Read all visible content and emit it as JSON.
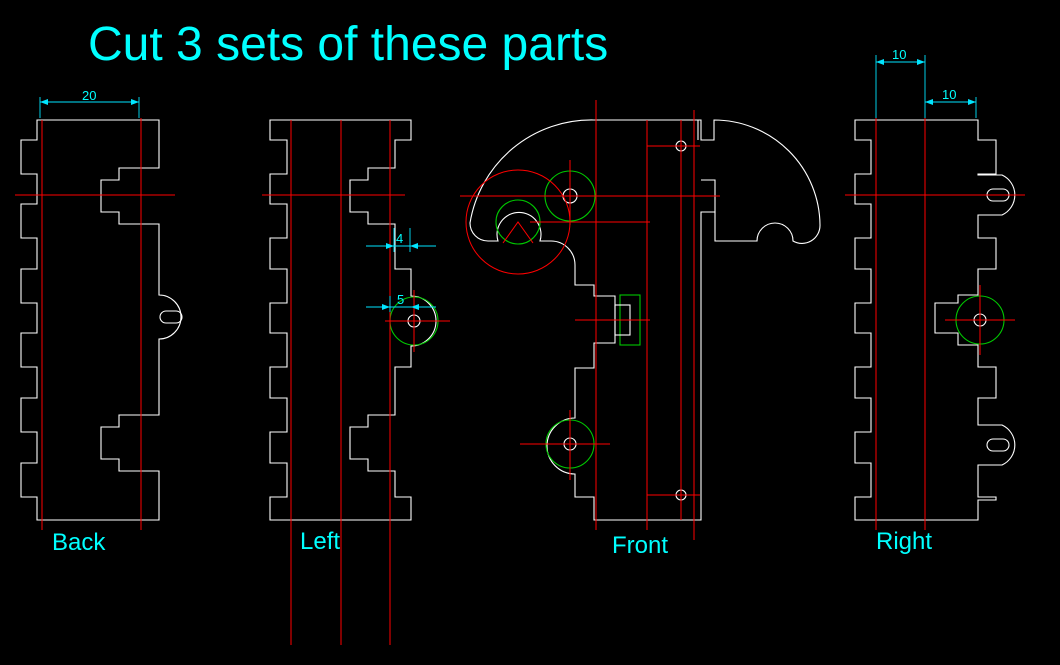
{
  "title": "Cut 3 sets of these parts",
  "parts": {
    "back": "Back",
    "left": "Left",
    "front": "Front",
    "right": "Right"
  },
  "dimensions": {
    "back_width": "20",
    "left_slot": "4",
    "left_tab": "5",
    "right_top": "10",
    "right_top2": "10"
  },
  "colors": {
    "background": "#000000",
    "outline": "#ffffff",
    "centerline": "#ff0000",
    "hole": "#00c800",
    "annotation": "#00ffff"
  }
}
